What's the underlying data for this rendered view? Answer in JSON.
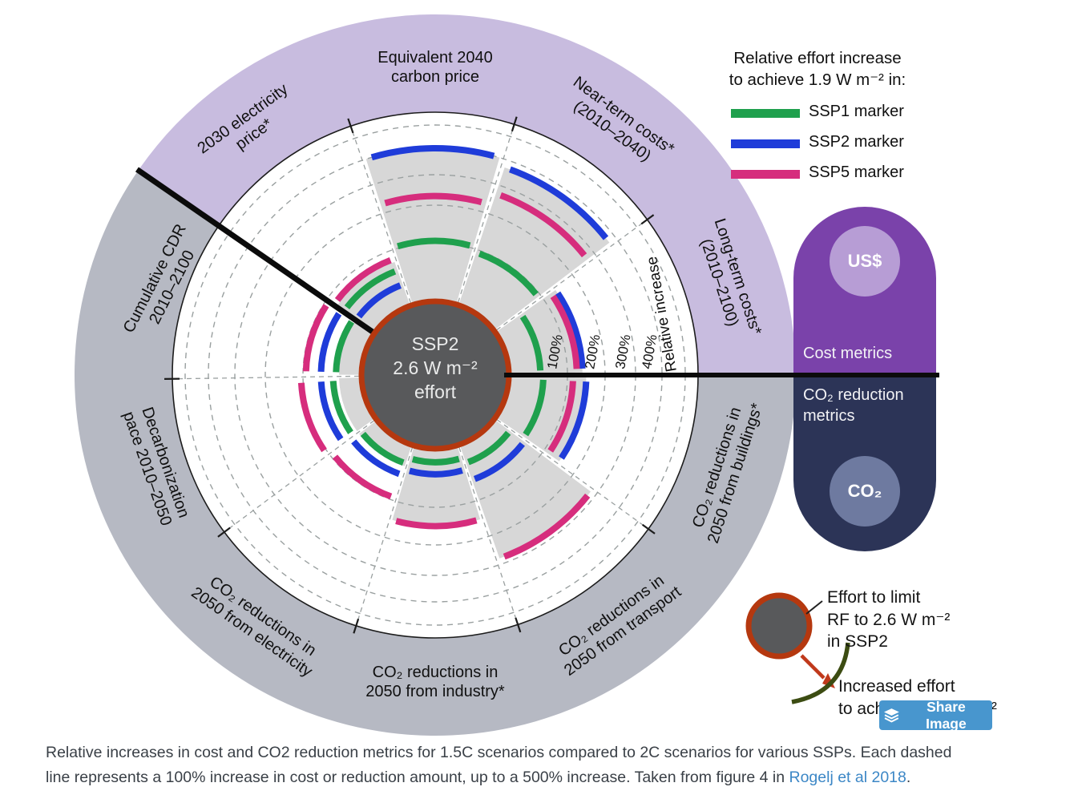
{
  "legend": {
    "title": "Relative effort increase\nto achieve 1.9 W m⁻² in:",
    "items": [
      {
        "label": "SSP1 marker",
        "color": "#1fa04d"
      },
      {
        "label": "SSP2 marker",
        "color": "#1f3cd9"
      },
      {
        "label": "SSP5 marker",
        "color": "#d62d7d"
      }
    ]
  },
  "chart_data": {
    "type": "polar radial-bar (relative increase markers)",
    "title": "Relative effort increase to achieve 1.9 W m⁻² vs SSP2 2.6 W m⁻² effort",
    "center_label": "SSP2\n2.6 W m⁻²\neffort",
    "axis_label": "Relative increase",
    "ring_labels": [
      "100%",
      "200%",
      "300%",
      "400%"
    ],
    "rings_pct": [
      100,
      200,
      300,
      400,
      500
    ],
    "units": "% increase relative to SSP2 2.6 W m⁻² effort; each dashed ring = +100%, up to 500%",
    "groups": [
      {
        "name": "Cost metrics",
        "color": "#c8bcdf"
      },
      {
        "name": "CO₂ reduction metrics",
        "color": "#b6b9c3"
      }
    ],
    "categories": [
      {
        "label": "Long-term costs*\n(2010–2100)",
        "group": "Cost metrics"
      },
      {
        "label": "Near-term costs*\n(2010–2040)",
        "group": "Cost metrics"
      },
      {
        "label": "Equivalent 2040\ncarbon price",
        "group": "Cost metrics"
      },
      {
        "label": "2030 electricity\nprice*",
        "group": "Cost metrics"
      },
      {
        "label": "Cumulative CDR\n2010–2100",
        "group": "CO₂ reduction metrics"
      },
      {
        "label": "Decarbonization\npace 2010–2050",
        "group": "CO₂ reduction metrics"
      },
      {
        "label": "CO₂ reductions in\n2050 from electricity",
        "group": "CO₂ reduction metrics"
      },
      {
        "label": "CO₂ reductions in\n2050 from industry*",
        "group": "CO₂ reduction metrics"
      },
      {
        "label": "CO₂ reductions in\n2050 from transport",
        "group": "CO₂ reduction metrics"
      },
      {
        "label": "CO₂ reductions in\n2050 from buildings*",
        "group": "CO₂ reduction metrics"
      }
    ],
    "series": [
      {
        "name": "SSP1 marker",
        "color": "#1fa04d",
        "values_pct": [
          55,
          95,
          105,
          65,
          45,
          50,
          35,
          25,
          35,
          60
        ]
      },
      {
        "name": "SSP2 marker",
        "color": "#1f3cd9",
        "values_pct": [
          140,
          370,
          400,
          40,
          70,
          70,
          55,
          45,
          65,
          150
        ]
      },
      {
        "name": "SSP5 marker",
        "color": "#d62d7d",
        "values_pct": [
          125,
          270,
          230,
          85,
          95,
          105,
          95,
          150,
          280,
          115
        ]
      }
    ],
    "shaded_envelope_pct": [
      140,
      370,
      400,
      80,
      40,
      40,
      40,
      150,
      280,
      150
    ],
    "note": "marker values estimated from figure"
  },
  "side_legend": {
    "cost": {
      "label": "Cost metrics",
      "icon_text": "US$",
      "pill_color": "#7a42aa",
      "circle_color": "#b79dd5"
    },
    "co2": {
      "label": "CO₂ reduction\nmetrics",
      "icon_text": "CO₂",
      "pill_color": "#2c3457",
      "circle_color": "#6e7aa0"
    }
  },
  "mini_legend": {
    "effort_label": "Effort to limit\nRF to 2.6 W m⁻²\nin SSP2",
    "increase_label": "Increased effort\nto achieve 1.9 W m⁻²"
  },
  "share_button": {
    "label": "Share Image"
  },
  "caption": {
    "text_before": "Relative increases in cost and CO2 reduction metrics for 1.5C scenarios compared to 2C scenarios for various SSPs. Each dashed\nline represents a 100% increase in cost or reduction amount, up to a 500% increase. Taken from figure 4 in ",
    "link_text": "Rogelj et al 2018",
    "text_after": ".",
    "link_color": "#3c87c6"
  }
}
